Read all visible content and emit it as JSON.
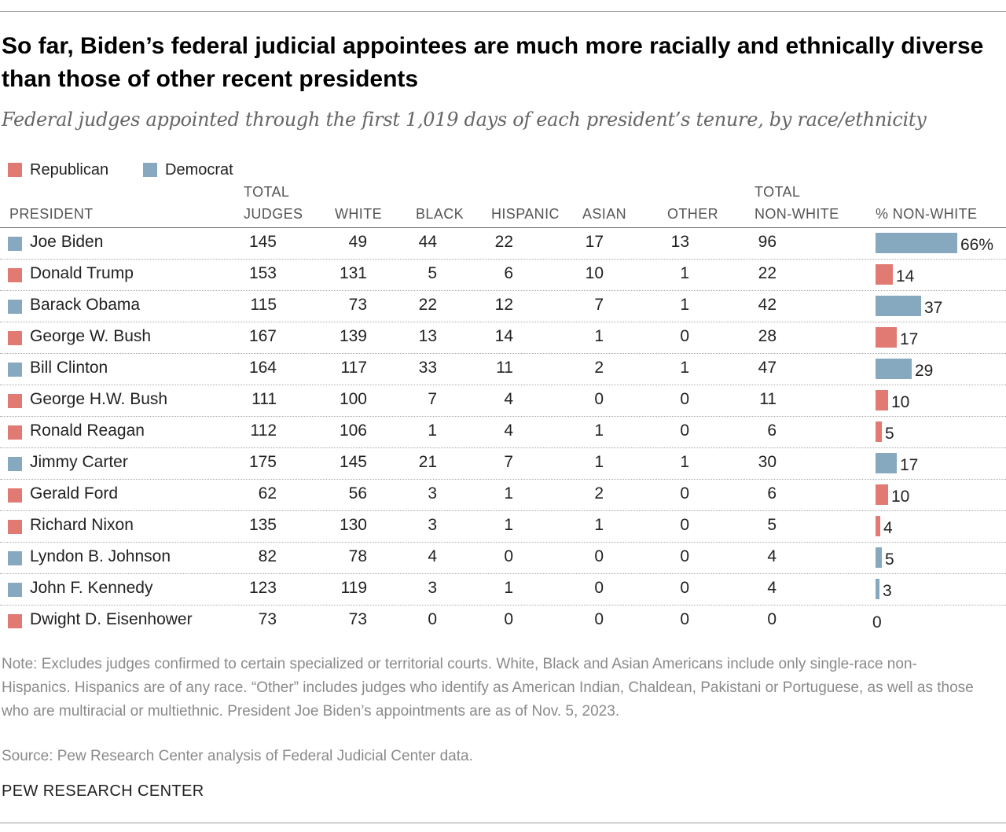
{
  "title": "So far, Biden’s federal judicial appointees are much more racially and ethnically diverse than those of other recent presidents",
  "subtitle": "Federal judges appointed through the first 1,019 days of each president’s tenure, by race/ethnicity",
  "legend": [
    {
      "label": "Republican",
      "color": "#e17a72"
    },
    {
      "label": "Democrat",
      "color": "#86a9bf"
    }
  ],
  "colors": {
    "Republican": "#e17a72",
    "Democrat": "#86a9bf"
  },
  "columns": {
    "president": "PRESIDENT",
    "total_line1": "TOTAL",
    "total_line2": "JUDGES",
    "white": "WHITE",
    "black": "BLACK",
    "hispanic": "HISPANIC",
    "asian": "ASIAN",
    "other": "OTHER",
    "nonwhite_line1": "TOTAL",
    "nonwhite_line2": "NON-WHITE",
    "pct": "% NON-WHITE"
  },
  "chart_data": {
    "type": "table",
    "columns": [
      "PRESIDENT",
      "TOTAL JUDGES",
      "WHITE",
      "BLACK",
      "HISPANIC",
      "ASIAN",
      "OTHER",
      "TOTAL NON-WHITE",
      "% NON-WHITE"
    ],
    "rows": [
      {
        "president": "Joe Biden",
        "party": "Democrat",
        "total": 145,
        "white": 49,
        "black": 44,
        "hispanic": 22,
        "asian": 17,
        "other": 13,
        "nonwhite": 96,
        "pct": 66,
        "pct_label": "66%"
      },
      {
        "president": "Donald Trump",
        "party": "Republican",
        "total": 153,
        "white": 131,
        "black": 5,
        "hispanic": 6,
        "asian": 10,
        "other": 1,
        "nonwhite": 22,
        "pct": 14,
        "pct_label": "14"
      },
      {
        "president": "Barack Obama",
        "party": "Democrat",
        "total": 115,
        "white": 73,
        "black": 22,
        "hispanic": 12,
        "asian": 7,
        "other": 1,
        "nonwhite": 42,
        "pct": 37,
        "pct_label": "37"
      },
      {
        "president": "George W. Bush",
        "party": "Republican",
        "total": 167,
        "white": 139,
        "black": 13,
        "hispanic": 14,
        "asian": 1,
        "other": 0,
        "nonwhite": 28,
        "pct": 17,
        "pct_label": "17"
      },
      {
        "president": "Bill Clinton",
        "party": "Democrat",
        "total": 164,
        "white": 117,
        "black": 33,
        "hispanic": 11,
        "asian": 2,
        "other": 1,
        "nonwhite": 47,
        "pct": 29,
        "pct_label": "29"
      },
      {
        "president": "George H.W. Bush",
        "party": "Republican",
        "total": 111,
        "white": 100,
        "black": 7,
        "hispanic": 4,
        "asian": 0,
        "other": 0,
        "nonwhite": 11,
        "pct": 10,
        "pct_label": "10"
      },
      {
        "president": "Ronald Reagan",
        "party": "Republican",
        "total": 112,
        "white": 106,
        "black": 1,
        "hispanic": 4,
        "asian": 1,
        "other": 0,
        "nonwhite": 6,
        "pct": 5,
        "pct_label": "5"
      },
      {
        "president": "Jimmy Carter",
        "party": "Democrat",
        "total": 175,
        "white": 145,
        "black": 21,
        "hispanic": 7,
        "asian": 1,
        "other": 1,
        "nonwhite": 30,
        "pct": 17,
        "pct_label": "17"
      },
      {
        "president": "Gerald Ford",
        "party": "Republican",
        "total": 62,
        "white": 56,
        "black": 3,
        "hispanic": 1,
        "asian": 2,
        "other": 0,
        "nonwhite": 6,
        "pct": 10,
        "pct_label": "10"
      },
      {
        "president": "Richard Nixon",
        "party": "Republican",
        "total": 135,
        "white": 130,
        "black": 3,
        "hispanic": 1,
        "asian": 1,
        "other": 0,
        "nonwhite": 5,
        "pct": 4,
        "pct_label": "4"
      },
      {
        "president": "Lyndon B. Johnson",
        "party": "Democrat",
        "total": 82,
        "white": 78,
        "black": 4,
        "hispanic": 0,
        "asian": 0,
        "other": 0,
        "nonwhite": 4,
        "pct": 5,
        "pct_label": "5"
      },
      {
        "president": "John F. Kennedy",
        "party": "Democrat",
        "total": 123,
        "white": 119,
        "black": 3,
        "hispanic": 1,
        "asian": 0,
        "other": 0,
        "nonwhite": 4,
        "pct": 3,
        "pct_label": "3"
      },
      {
        "president": "Dwight D. Eisenhower",
        "party": "Republican",
        "total": 73,
        "white": 73,
        "black": 0,
        "hispanic": 0,
        "asian": 0,
        "other": 0,
        "nonwhite": 0,
        "pct": 0,
        "pct_label": "0"
      }
    ]
  },
  "note": "Note: Excludes judges confirmed to certain specialized or territorial courts. White, Black and Asian Americans include only single-race non-Hispanics. Hispanics are of any race. “Other” includes judges who identify as American Indian, Chaldean, Pakistani or Portuguese, as well as those who are multiracial or multiethnic. President Joe Biden’s appointments are as of Nov. 5, 2023.",
  "source": "Source: Pew Research Center analysis of Federal Judicial Center data.",
  "brand": "PEW RESEARCH CENTER"
}
